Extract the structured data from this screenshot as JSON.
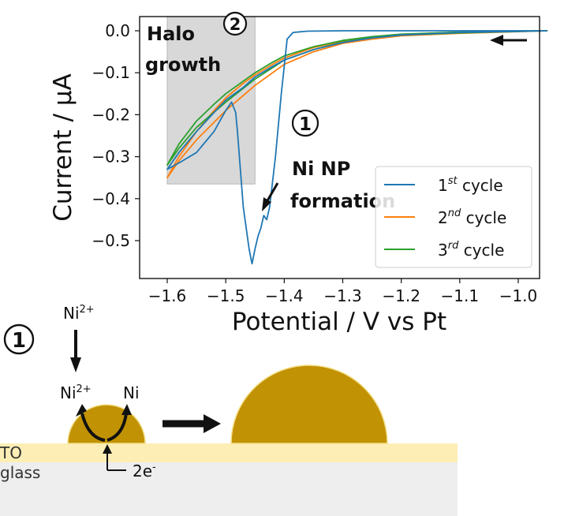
{
  "chart_data": {
    "type": "line",
    "xlabel": "Potential / V vs Pt",
    "ylabel": "Current / μA",
    "xlim": [
      -1.6,
      -0.95
    ],
    "ylim": [
      -0.57,
      0.03
    ],
    "xaxis_direction": "decreasing potential scan (cathodic), arrow pointing left",
    "x_ticks": [
      "−1.6",
      "−1.5",
      "−1.4",
      "−1.3",
      "−1.2",
      "−1.1",
      "−1.0"
    ],
    "x_tick_values": [
      -1.6,
      -1.5,
      -1.4,
      -1.3,
      -1.2,
      -1.1,
      -1.0
    ],
    "y_ticks": [
      "0.0",
      "−0.1",
      "−0.2",
      "−0.3",
      "−0.4",
      "−0.5"
    ],
    "y_tick_values": [
      0.0,
      -0.1,
      -0.2,
      -0.3,
      -0.4,
      -0.5
    ],
    "grid": false,
    "legend_position": "lower-right",
    "series": [
      {
        "name_base": "1",
        "name_sup": "st",
        "name_rest": " cycle",
        "color": "#1f77b4",
        "forward": [
          [
            -0.95,
            0.0
          ],
          [
            -1.1,
            0.0
          ],
          [
            -1.2,
            0.0
          ],
          [
            -1.3,
            0.0
          ],
          [
            -1.36,
            -0.001
          ],
          [
            -1.385,
            -0.004
          ],
          [
            -1.395,
            -0.02
          ],
          [
            -1.405,
            -0.15
          ],
          [
            -1.415,
            -0.3
          ],
          [
            -1.425,
            -0.42
          ],
          [
            -1.43,
            -0.45
          ],
          [
            -1.435,
            -0.44
          ],
          [
            -1.44,
            -0.47
          ],
          [
            -1.445,
            -0.49
          ],
          [
            -1.45,
            -0.52
          ],
          [
            -1.455,
            -0.555
          ],
          [
            -1.46,
            -0.52
          ],
          [
            -1.47,
            -0.42
          ],
          [
            -1.48,
            -0.24
          ],
          [
            -1.483,
            -0.195
          ],
          [
            -1.49,
            -0.17
          ],
          [
            -1.5,
            -0.19
          ],
          [
            -1.52,
            -0.24
          ],
          [
            -1.55,
            -0.29
          ],
          [
            -1.58,
            -0.315
          ],
          [
            -1.6,
            -0.33
          ]
        ],
        "reverse": [
          [
            -1.6,
            -0.33
          ],
          [
            -1.58,
            -0.29
          ],
          [
            -1.55,
            -0.24
          ],
          [
            -1.52,
            -0.195
          ],
          [
            -1.5,
            -0.165
          ],
          [
            -1.47,
            -0.135
          ],
          [
            -1.45,
            -0.11
          ],
          [
            -1.42,
            -0.085
          ],
          [
            -1.4,
            -0.07
          ],
          [
            -1.35,
            -0.045
          ],
          [
            -1.3,
            -0.028
          ],
          [
            -1.25,
            -0.017
          ],
          [
            -1.2,
            -0.01
          ],
          [
            -1.1,
            -0.004
          ],
          [
            -0.95,
            0.0
          ]
        ]
      },
      {
        "name_base": "2",
        "name_sup": "nd",
        "name_rest": " cycle",
        "color": "#ff7f0e",
        "forward": [
          [
            -0.95,
            0.0
          ],
          [
            -1.1,
            -0.006
          ],
          [
            -1.2,
            -0.012
          ],
          [
            -1.25,
            -0.02
          ],
          [
            -1.3,
            -0.03
          ],
          [
            -1.35,
            -0.05
          ],
          [
            -1.4,
            -0.08
          ],
          [
            -1.45,
            -0.13
          ],
          [
            -1.5,
            -0.19
          ],
          [
            -1.55,
            -0.26
          ],
          [
            -1.58,
            -0.31
          ],
          [
            -1.6,
            -0.35
          ]
        ],
        "reverse": [
          [
            -1.6,
            -0.35
          ],
          [
            -1.58,
            -0.3
          ],
          [
            -1.55,
            -0.24
          ],
          [
            -1.52,
            -0.19
          ],
          [
            -1.5,
            -0.16
          ],
          [
            -1.47,
            -0.125
          ],
          [
            -1.45,
            -0.105
          ],
          [
            -1.42,
            -0.08
          ],
          [
            -1.4,
            -0.065
          ],
          [
            -1.35,
            -0.04
          ],
          [
            -1.3,
            -0.025
          ],
          [
            -1.25,
            -0.015
          ],
          [
            -1.2,
            -0.009
          ],
          [
            -1.1,
            -0.003
          ],
          [
            -0.95,
            0.0
          ]
        ]
      },
      {
        "name_base": "3",
        "name_sup": "rd",
        "name_rest": " cycle",
        "color": "#2ca02c",
        "forward": [
          [
            -0.95,
            0.0
          ],
          [
            -1.1,
            -0.005
          ],
          [
            -1.2,
            -0.01
          ],
          [
            -1.25,
            -0.017
          ],
          [
            -1.3,
            -0.027
          ],
          [
            -1.35,
            -0.045
          ],
          [
            -1.4,
            -0.07
          ],
          [
            -1.45,
            -0.115
          ],
          [
            -1.5,
            -0.17
          ],
          [
            -1.55,
            -0.23
          ],
          [
            -1.58,
            -0.28
          ],
          [
            -1.6,
            -0.32
          ]
        ],
        "reverse": [
          [
            -1.6,
            -0.32
          ],
          [
            -1.58,
            -0.27
          ],
          [
            -1.55,
            -0.215
          ],
          [
            -1.52,
            -0.175
          ],
          [
            -1.5,
            -0.15
          ],
          [
            -1.47,
            -0.12
          ],
          [
            -1.45,
            -0.1
          ],
          [
            -1.42,
            -0.075
          ],
          [
            -1.4,
            -0.06
          ],
          [
            -1.35,
            -0.038
          ],
          [
            -1.3,
            -0.023
          ],
          [
            -1.25,
            -0.014
          ],
          [
            -1.2,
            -0.008
          ],
          [
            -1.1,
            -0.003
          ],
          [
            -0.95,
            0.0
          ]
        ]
      }
    ],
    "shaded_region": {
      "x": [
        -1.6,
        -1.45
      ],
      "y": [
        -0.365,
        0.03
      ],
      "color": "#c8c8c8"
    },
    "annotations": [
      {
        "id": "halo",
        "text_lines": [
          "Halo",
          "growth"
        ],
        "marker": "②"
      },
      {
        "id": "ni-np",
        "text_lines": [
          "Ni NP",
          "formation"
        ],
        "marker": "①"
      }
    ]
  },
  "schematic": {
    "step_marker": "①",
    "ion_label_top": "Ni",
    "ion_label_top_sup": "2+",
    "ion_label_bottom": "Ni",
    "ion_label_bottom_sup": "2+",
    "product_label": "Ni",
    "electrons_label": "2e",
    "electrons_sup": "-",
    "substrate_top_label": "TO",
    "substrate_bottom_label": "glass",
    "colors": {
      "particle": "#c29205",
      "substrate_top": "#fdeeb5",
      "substrate_bottom": "#eeeeee",
      "arrow": "#111111"
    }
  }
}
